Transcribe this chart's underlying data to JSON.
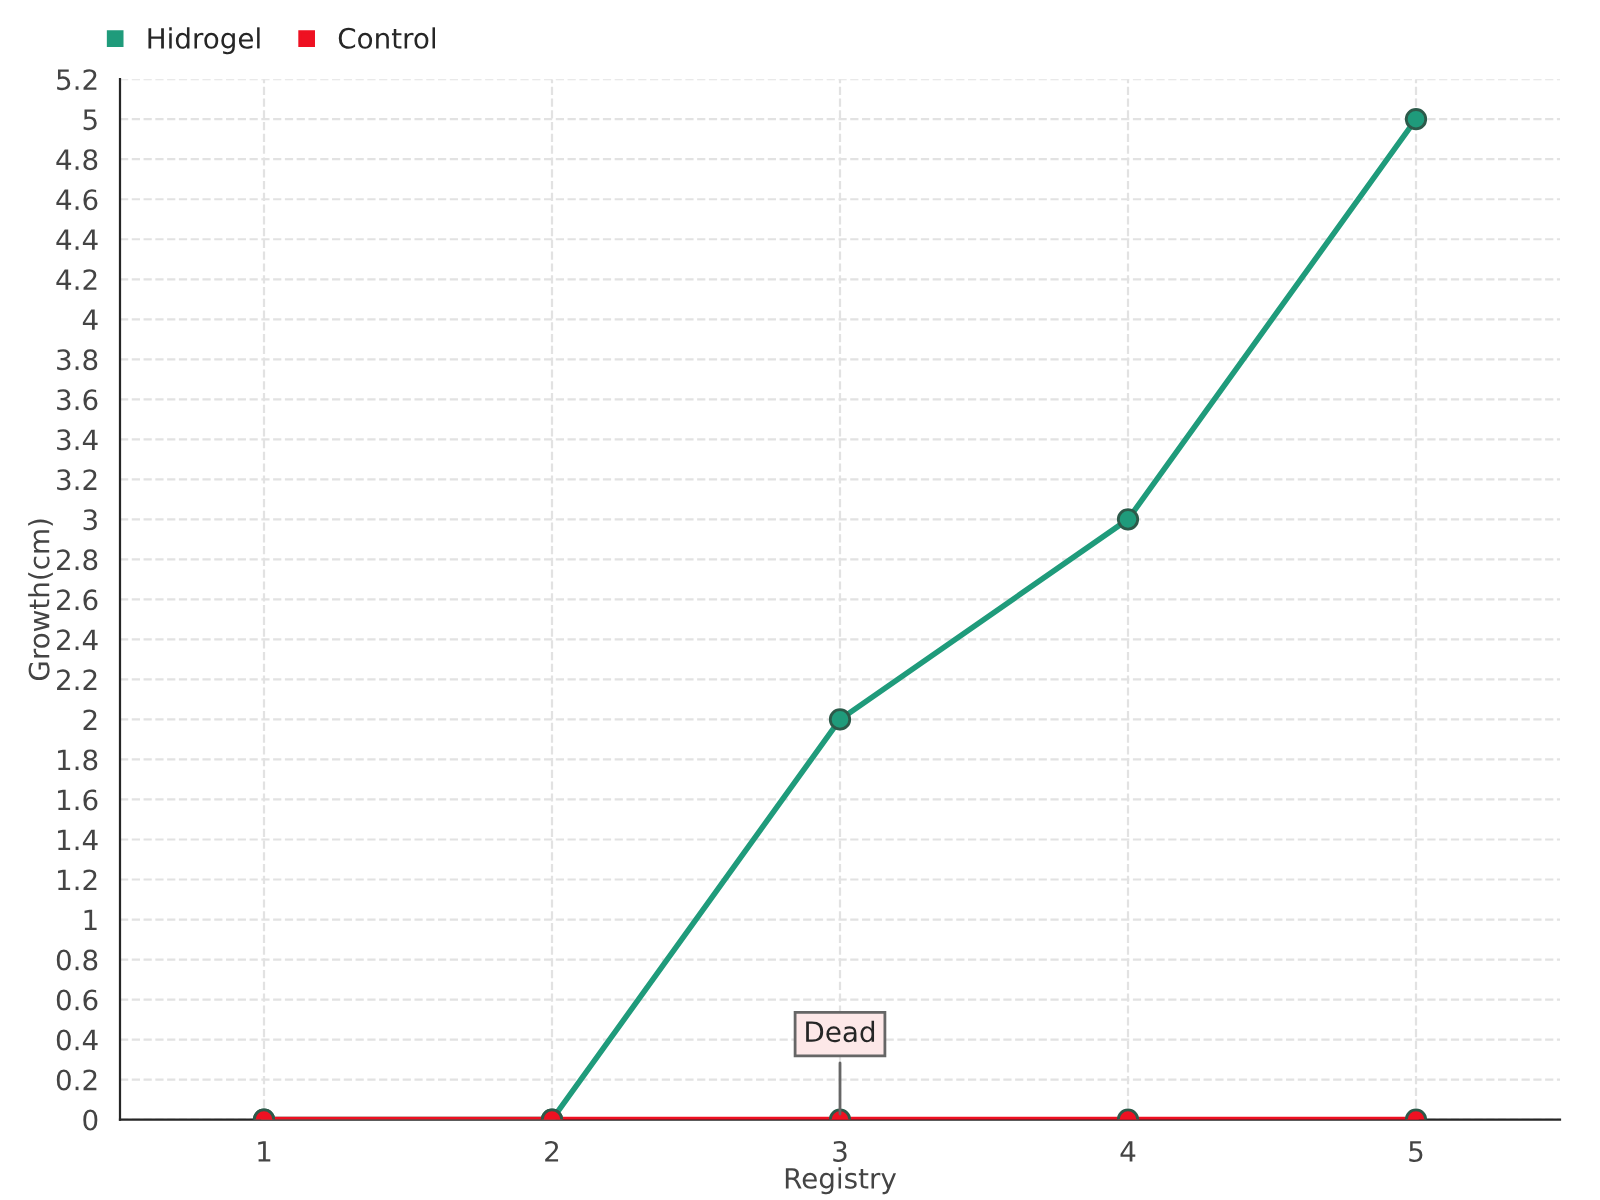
{
  "chart_data": {
    "type": "line",
    "xlabel": "Registry",
    "ylabel": "Growth(cm)",
    "categories": [
      "1",
      "2",
      "3",
      "4",
      "5"
    ],
    "series": [
      {
        "name": "Hidrogel",
        "color": "#1f9b7b",
        "values": [
          0,
          0,
          2,
          3,
          5
        ]
      },
      {
        "name": "Control",
        "color": "#ee1122",
        "values": [
          0,
          0,
          0,
          0,
          0
        ]
      }
    ],
    "ylim": [
      0,
      5.2
    ],
    "yticks": [
      0,
      0.2,
      0.4,
      0.6,
      0.8,
      1,
      1.2,
      1.4,
      1.6,
      1.8,
      2,
      2.2,
      2.4,
      2.6,
      2.8,
      3,
      3.2,
      3.4,
      3.6,
      3.8,
      4,
      4.2,
      4.4,
      4.6,
      4.8,
      5,
      5.2
    ],
    "annotations": [
      {
        "text": "Dead",
        "x": "3",
        "y": 0
      }
    ],
    "grid": true,
    "legend": "top left",
    "marker": "circle"
  }
}
